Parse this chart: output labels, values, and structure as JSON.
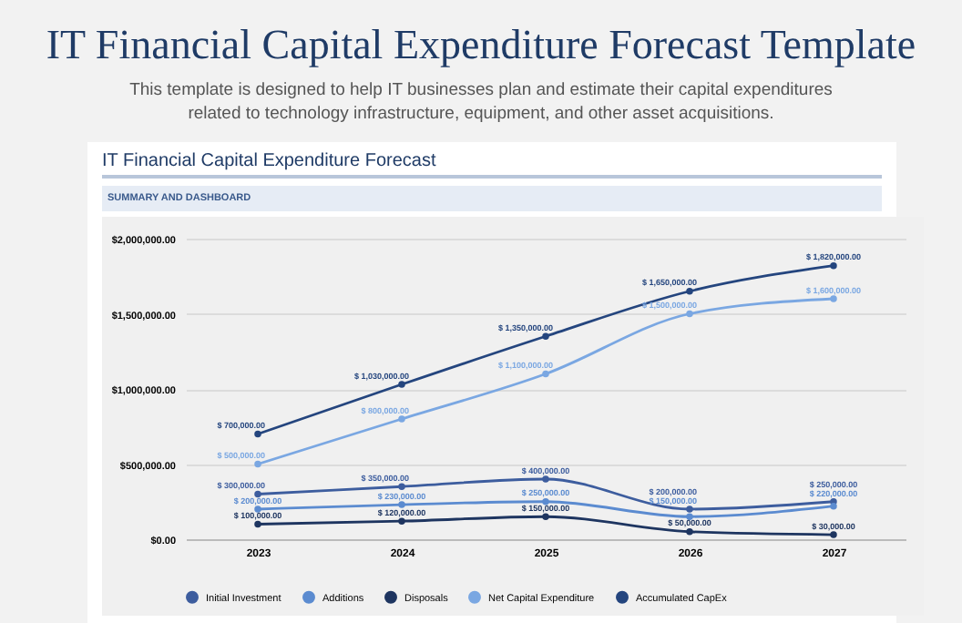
{
  "chart_data": {
    "type": "line",
    "title": "IT Financial Capital Expenditure Forecast Template",
    "subtitle": "This template is designed to help IT businesses plan and estimate their capital expenditures related to technology infrastructure, equipment, and other asset acquisitions.",
    "annotations": [
      "IT Financial Capital Expenditure Forecast",
      "SUMMARY AND DASHBOARD"
    ],
    "categories": [
      "2023",
      "2024",
      "2025",
      "2026",
      "2027"
    ],
    "ylim": [
      0,
      2000000
    ],
    "yticks": [
      {
        "value": 0,
        "label": "$0.00"
      },
      {
        "value": 500000,
        "label": "$500,000.00"
      },
      {
        "value": 1000000,
        "label": "$1,000,000.00"
      },
      {
        "value": 1500000,
        "label": "$1,500,000.00"
      },
      {
        "value": 2000000,
        "label": "$2,000,000.00"
      }
    ],
    "grid": "y",
    "legend": "bottom",
    "marker": "circle",
    "line_style": "solid",
    "series": [
      {
        "name": "Initial Investment",
        "color": "#3d5d9e",
        "values": [
          300000,
          350000,
          400000,
          200000,
          250000
        ],
        "value_labels": [
          "$ 300,000.00",
          "$ 350,000.00",
          "$ 400,000.00",
          "$ 200,000.00",
          "$ 250,000.00"
        ]
      },
      {
        "name": "Additions",
        "color": "#5b8bd0",
        "values": [
          200000,
          230000,
          250000,
          150000,
          220000
        ],
        "value_labels": [
          "$ 200,000.00",
          "$ 230,000.00",
          "$ 250,000.00",
          "$ 150,000.00",
          "$ 220,000.00"
        ]
      },
      {
        "name": "Disposals",
        "color": "#1e3560",
        "values": [
          100000,
          120000,
          150000,
          50000,
          30000
        ],
        "value_labels": [
          "$ 100,000.00",
          "$ 120,000.00",
          "$ 150,000.00",
          "$ 50,000.00",
          "$ 30,000.00"
        ]
      },
      {
        "name": "Net Capital Expenditure",
        "color": "#7aa7e2",
        "values": [
          500000,
          800000,
          1100000,
          1500000,
          1600000
        ],
        "value_labels": [
          "$ 500,000.00",
          "$ 800,000.00",
          "$ 1,100,000.00",
          "$ 1,500,000.00",
          "$ 1,600,000.00"
        ]
      },
      {
        "name": "Accumulated CapEx",
        "color": "#24457e",
        "values": [
          700000,
          1030000,
          1350000,
          1650000,
          1820000
        ],
        "value_labels": [
          "$ 700,000.00",
          "$ 1,030,000.00",
          "$ 1,350,000.00",
          "$ 1,650,000.00",
          "$ 1,820,000.00"
        ]
      }
    ]
  }
}
